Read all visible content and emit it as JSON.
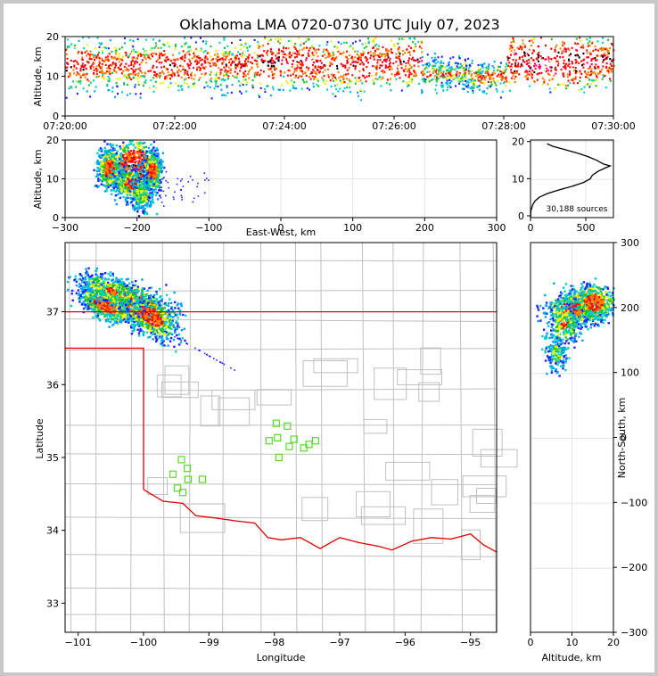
{
  "title": "Oklahoma LMA 0720-0730 UTC July 07, 2023",
  "source_count": "30,188 sources",
  "colors": {
    "state_border": "#e00000",
    "county_lines": "#c0c0c0",
    "station_marker": "#55dd22",
    "grid": "#e6e6e6",
    "density_scale": [
      "#ffffff",
      "#2020ff",
      "#00a0ff",
      "#00d0c0",
      "#20c020",
      "#f0f000",
      "#ff8000",
      "#ff0000",
      "#ff0060",
      "#ffffff",
      "#000000"
    ]
  },
  "chart_data": [
    {
      "id": "alt-time",
      "type": "heatmap",
      "title": "",
      "xlabel": "",
      "ylabel": "Altitude, km",
      "xticks": [
        "07:20:00",
        "07:22:00",
        "07:24:00",
        "07:26:00",
        "07:28:00",
        "07:30:00"
      ],
      "yticks": [
        "0",
        "10",
        "20"
      ],
      "ylim": [
        0,
        20
      ],
      "xlim_minutes": [
        0,
        10
      ],
      "series": [
        {
          "values": [
            [
              0.0,
              0.8,
              13,
              5
            ],
            [
              1.0,
              0.7,
              13,
              5
            ],
            [
              2.0,
              0.8,
              13,
              5
            ],
            [
              3.0,
              0.7,
              13,
              5
            ],
            [
              4.0,
              0.85,
              14,
              5
            ],
            [
              5.0,
              0.8,
              13,
              5
            ],
            [
              6.0,
              0.85,
              14,
              5
            ],
            [
              7.0,
              0.5,
              11,
              3
            ],
            [
              7.8,
              0.6,
              10,
              3
            ],
            [
              8.3,
              1.0,
              14,
              5
            ],
            [
              9.0,
              1.0,
              14,
              5
            ],
            [
              9.9,
              0.9,
              14,
              5
            ]
          ]
        }
      ]
    },
    {
      "id": "alt-ew",
      "type": "heatmap",
      "title": "",
      "xlabel": "East-West, km",
      "ylabel": "Altitude, km",
      "xticks": [
        "−300",
        "−200",
        "−100",
        "0",
        "100",
        "200",
        "300"
      ],
      "yticks": [
        "0",
        "10",
        "20"
      ],
      "xlim": [
        -300,
        300
      ],
      "ylim": [
        0,
        20
      ],
      "series": [
        {
          "values": [
            [
              -205,
              14,
              24,
              5,
              1.0
            ],
            [
              -240,
              13,
              12,
              4,
              0.8
            ],
            [
              -180,
              12,
              10,
              4,
              0.8
            ],
            [
              -210,
              9,
              18,
              3,
              0.7
            ],
            [
              -195,
              6,
              12,
              3,
              0.5
            ]
          ]
        }
      ]
    },
    {
      "id": "alt-histogram",
      "type": "line",
      "title": "",
      "xlabel": "",
      "ylabel": "",
      "xticks": [
        "0",
        "500"
      ],
      "yticks": [
        "0",
        "10",
        "20"
      ],
      "xlim": [
        0,
        750
      ],
      "ylim": [
        0,
        21
      ],
      "series": [
        {
          "values": [
            [
              0,
              0
            ],
            [
              5,
              2
            ],
            [
              20,
              3.5
            ],
            [
              40,
              4.5
            ],
            [
              80,
              5.5
            ],
            [
              150,
              6.5
            ],
            [
              260,
              7.5
            ],
            [
              380,
              8.5
            ],
            [
              480,
              9.5
            ],
            [
              540,
              10.5
            ],
            [
              560,
              11.5
            ],
            [
              610,
              12.5
            ],
            [
              680,
              13.5
            ],
            [
              720,
              14
            ],
            [
              660,
              14.5
            ],
            [
              600,
              15.5
            ],
            [
              520,
              16.5
            ],
            [
              420,
              17.5
            ],
            [
              300,
              18.5
            ],
            [
              200,
              19.3
            ],
            [
              150,
              20
            ]
          ]
        }
      ]
    },
    {
      "id": "plan-view",
      "type": "heatmap",
      "title": "",
      "xlabel": "Longitude",
      "ylabel": "Latitude",
      "xticks": [
        "−101",
        "−100",
        "−99",
        "−98",
        "−97",
        "−96",
        "−95"
      ],
      "yticks": [
        "33",
        "34",
        "35",
        "36",
        "37"
      ],
      "xlim": [
        -101.2,
        -94.6
      ],
      "ylim": [
        32.6,
        37.95
      ],
      "series": [
        {
          "values": [
            [
              -100.2,
              37.13,
              0.5,
              0.2,
              1.0
            ],
            [
              -100.6,
              37.1,
              0.3,
              0.15,
              0.8
            ],
            [
              -99.9,
              36.95,
              0.3,
              0.2,
              0.8
            ],
            [
              -100.5,
              37.3,
              0.4,
              0.15,
              0.6
            ]
          ]
        }
      ],
      "stations": [
        [
          -97.97,
          35.47
        ],
        [
          -97.8,
          35.43
        ],
        [
          -98.08,
          35.23
        ],
        [
          -97.95,
          35.27
        ],
        [
          -97.7,
          35.25
        ],
        [
          -97.77,
          35.15
        ],
        [
          -97.55,
          35.13
        ],
        [
          -97.47,
          35.18
        ],
        [
          -97.37,
          35.23
        ],
        [
          -97.93,
          35.0
        ],
        [
          -99.42,
          34.97
        ],
        [
          -99.33,
          34.85
        ],
        [
          -99.55,
          34.77
        ],
        [
          -99.32,
          34.7
        ],
        [
          -99.1,
          34.7
        ],
        [
          -99.48,
          34.58
        ],
        [
          -99.4,
          34.52
        ]
      ]
    },
    {
      "id": "ns-alt",
      "type": "heatmap",
      "title": "",
      "xlabel": "Altitude, km",
      "ylabel": "North-South, km",
      "xticks": [
        "0",
        "10",
        "20"
      ],
      "yticks": [
        "300",
        "200",
        "100",
        "0",
        "−100",
        "−200",
        "−300"
      ],
      "xlim": [
        0,
        20
      ],
      "ylim": [
        -300,
        300
      ],
      "series": [
        {
          "values": [
            [
              13,
              205,
              5,
              20,
              1.0
            ],
            [
              10,
              200,
              5,
              18,
              0.8
            ],
            [
              15,
              210,
              4,
              22,
              0.8
            ],
            [
              8,
              175,
              3,
              25,
              0.6
            ],
            [
              6,
              130,
              2,
              20,
              0.4
            ]
          ]
        }
      ]
    }
  ]
}
